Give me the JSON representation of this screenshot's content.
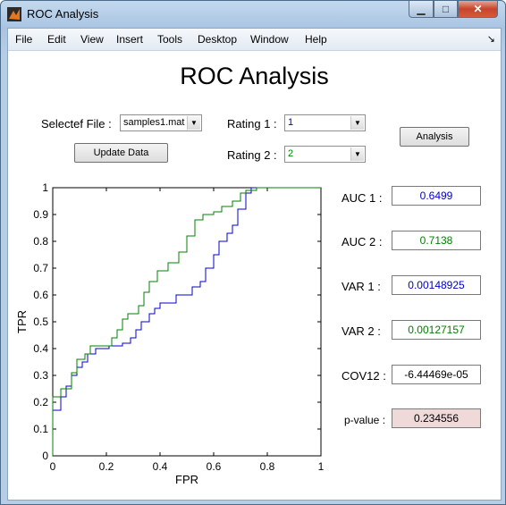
{
  "window": {
    "title": "ROC Analysis"
  },
  "menu": [
    "File",
    "Edit",
    "View",
    "Insert",
    "Tools",
    "Desktop",
    "Window",
    "Help"
  ],
  "heading": "ROC Analysis",
  "file": {
    "label": "Selectef File :",
    "value": "samples1.mat"
  },
  "rating1": {
    "label": "Rating 1 :",
    "value": "1"
  },
  "rating2": {
    "label": "Rating 2 :",
    "value": "2"
  },
  "buttons": {
    "update": "Update Data",
    "analysis": "Analysis"
  },
  "stats": [
    {
      "label": "AUC 1 :",
      "value": "0.6499",
      "color": "#0000cc"
    },
    {
      "label": "AUC 2 :",
      "value": "0.7138",
      "color": "#008000"
    },
    {
      "label": "VAR 1 :",
      "value": "0.00148925",
      "color": "#0000cc"
    },
    {
      "label": "VAR 2 :",
      "value": "0.00127157",
      "color": "#008000"
    },
    {
      "label": "COV12 :",
      "value": "-6.44469e-05",
      "color": "#000000"
    },
    {
      "label": "p-value :",
      "value": "0.234556",
      "color": "#000000",
      "bg": "#efd9d9"
    }
  ],
  "chart_data": {
    "type": "line",
    "xlabel": "FPR",
    "ylabel": "TPR",
    "xlim": [
      0,
      1
    ],
    "ylim": [
      0,
      1
    ],
    "xticks": [
      "0",
      "0.2",
      "0.4",
      "0.6",
      "0.8",
      "1"
    ],
    "yticks": [
      "0",
      "0.1",
      "0.2",
      "0.3",
      "0.4",
      "0.5",
      "0.6",
      "0.7",
      "0.8",
      "0.9",
      "1"
    ],
    "series": [
      {
        "color": "#0000cc",
        "points": [
          [
            0,
            0
          ],
          [
            0,
            0.17
          ],
          [
            0.03,
            0.17
          ],
          [
            0.03,
            0.22
          ],
          [
            0.05,
            0.22
          ],
          [
            0.05,
            0.26
          ],
          [
            0.07,
            0.26
          ],
          [
            0.07,
            0.3
          ],
          [
            0.09,
            0.3
          ],
          [
            0.09,
            0.33
          ],
          [
            0.11,
            0.33
          ],
          [
            0.11,
            0.35
          ],
          [
            0.13,
            0.35
          ],
          [
            0.13,
            0.38
          ],
          [
            0.16,
            0.38
          ],
          [
            0.16,
            0.4
          ],
          [
            0.21,
            0.4
          ],
          [
            0.21,
            0.41
          ],
          [
            0.26,
            0.41
          ],
          [
            0.26,
            0.42
          ],
          [
            0.29,
            0.42
          ],
          [
            0.29,
            0.44
          ],
          [
            0.31,
            0.44
          ],
          [
            0.31,
            0.47
          ],
          [
            0.33,
            0.47
          ],
          [
            0.33,
            0.5
          ],
          [
            0.36,
            0.5
          ],
          [
            0.36,
            0.53
          ],
          [
            0.38,
            0.53
          ],
          [
            0.38,
            0.55
          ],
          [
            0.4,
            0.55
          ],
          [
            0.4,
            0.57
          ],
          [
            0.46,
            0.57
          ],
          [
            0.46,
            0.6
          ],
          [
            0.52,
            0.6
          ],
          [
            0.52,
            0.63
          ],
          [
            0.55,
            0.63
          ],
          [
            0.55,
            0.65
          ],
          [
            0.57,
            0.65
          ],
          [
            0.57,
            0.7
          ],
          [
            0.6,
            0.7
          ],
          [
            0.6,
            0.75
          ],
          [
            0.62,
            0.75
          ],
          [
            0.62,
            0.8
          ],
          [
            0.65,
            0.8
          ],
          [
            0.65,
            0.83
          ],
          [
            0.67,
            0.83
          ],
          [
            0.67,
            0.86
          ],
          [
            0.69,
            0.86
          ],
          [
            0.69,
            0.92
          ],
          [
            0.72,
            0.92
          ],
          [
            0.72,
            0.98
          ],
          [
            0.74,
            0.98
          ],
          [
            0.74,
            1
          ],
          [
            1,
            1
          ]
        ]
      },
      {
        "color": "#008000",
        "points": [
          [
            0,
            0
          ],
          [
            0,
            0.22
          ],
          [
            0.03,
            0.22
          ],
          [
            0.03,
            0.25
          ],
          [
            0.07,
            0.25
          ],
          [
            0.07,
            0.31
          ],
          [
            0.09,
            0.31
          ],
          [
            0.09,
            0.36
          ],
          [
            0.12,
            0.36
          ],
          [
            0.12,
            0.38
          ],
          [
            0.14,
            0.38
          ],
          [
            0.14,
            0.41
          ],
          [
            0.22,
            0.41
          ],
          [
            0.22,
            0.44
          ],
          [
            0.24,
            0.44
          ],
          [
            0.24,
            0.47
          ],
          [
            0.26,
            0.47
          ],
          [
            0.26,
            0.51
          ],
          [
            0.28,
            0.51
          ],
          [
            0.28,
            0.53
          ],
          [
            0.32,
            0.53
          ],
          [
            0.32,
            0.56
          ],
          [
            0.34,
            0.56
          ],
          [
            0.34,
            0.61
          ],
          [
            0.36,
            0.61
          ],
          [
            0.36,
            0.65
          ],
          [
            0.39,
            0.65
          ],
          [
            0.39,
            0.69
          ],
          [
            0.43,
            0.69
          ],
          [
            0.43,
            0.72
          ],
          [
            0.47,
            0.72
          ],
          [
            0.47,
            0.76
          ],
          [
            0.5,
            0.76
          ],
          [
            0.5,
            0.82
          ],
          [
            0.53,
            0.82
          ],
          [
            0.53,
            0.88
          ],
          [
            0.56,
            0.88
          ],
          [
            0.56,
            0.9
          ],
          [
            0.6,
            0.9
          ],
          [
            0.6,
            0.91
          ],
          [
            0.63,
            0.91
          ],
          [
            0.63,
            0.93
          ],
          [
            0.67,
            0.93
          ],
          [
            0.67,
            0.95
          ],
          [
            0.7,
            0.95
          ],
          [
            0.7,
            0.98
          ],
          [
            0.72,
            0.98
          ],
          [
            0.72,
            0.99
          ],
          [
            0.76,
            0.99
          ],
          [
            0.76,
            1
          ],
          [
            1,
            1
          ]
        ]
      }
    ]
  }
}
